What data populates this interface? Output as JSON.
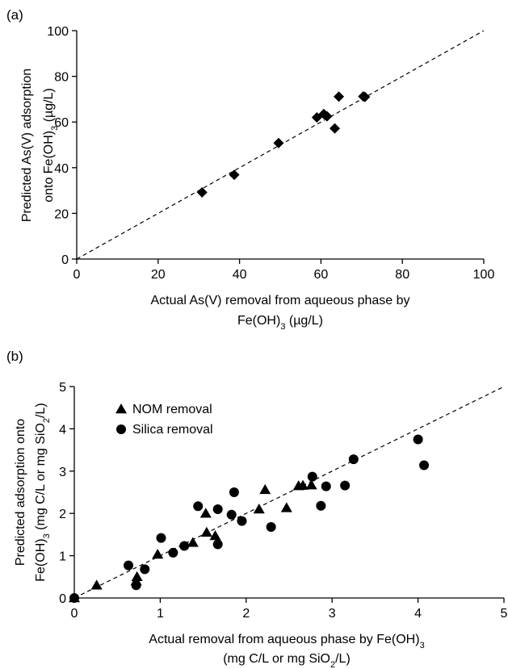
{
  "chart_data": [
    {
      "panel_label": "(a)",
      "type": "scatter",
      "xlabel_line1": "Actual As(V) removal from aqueous phase by",
      "xlabel_line2": {
        "pre": "Fe(OH)",
        "sub": "3",
        "post": " (µg/L)"
      },
      "ylabel_line1": "Predicted As(V) adsorption",
      "ylabel_line2": {
        "pre": "onto Fe(OH)",
        "sub": "3",
        "post": " (µg/L)"
      },
      "xlim": [
        0,
        100
      ],
      "ylim": [
        0,
        100
      ],
      "xticks": [
        0,
        20,
        40,
        60,
        80,
        100
      ],
      "yticks": [
        0,
        20,
        40,
        60,
        80,
        100
      ],
      "tick_labels_x": [
        "0",
        "20",
        "40",
        "60",
        "80",
        "100"
      ],
      "tick_labels_y": [
        "0",
        "20",
        "40",
        "60",
        "80",
        "100"
      ],
      "reference_line": "1:1 dashed",
      "series": [
        {
          "marker": "diamond",
          "points": [
            [
              30.8,
              29.2
            ],
            [
              38.7,
              36.9
            ],
            [
              49.6,
              50.8
            ],
            [
              59.0,
              62.0
            ],
            [
              60.7,
              63.5
            ],
            [
              61.5,
              62.5
            ],
            [
              63.4,
              57.2
            ],
            [
              64.4,
              71.1
            ],
            [
              70.4,
              71.2
            ],
            [
              70.8,
              71.0
            ]
          ]
        }
      ]
    },
    {
      "panel_label": "(b)",
      "type": "scatter",
      "xlabel_line1": {
        "pre": "Actual removal from aqueous phase by Fe(OH)",
        "sub": "3",
        "post": ""
      },
      "xlabel_line2": {
        "pre": "(mg C/L or mg SiO",
        "sub": "2",
        "post": "/L)"
      },
      "ylabel_line1": {
        "pre": "Predicted adsorption onto",
        "sub": "",
        "post": ""
      },
      "ylabel_line2": {
        "pre": "Fe(OH)",
        "sub": "3",
        "mid": " (mg C/L or mg SiO",
        "sub2": "2",
        "post": "/L)"
      },
      "xlim": [
        0,
        5
      ],
      "ylim": [
        0,
        5
      ],
      "xticks": [
        0,
        1,
        2,
        3,
        4,
        5
      ],
      "yticks": [
        0,
        1,
        2,
        3,
        4,
        5
      ],
      "tick_labels_x": [
        "0",
        "1",
        "2",
        "3",
        "4",
        "5"
      ],
      "tick_labels_y": [
        "0",
        "1",
        "2",
        "3",
        "4",
        "5"
      ],
      "reference_line": "1:1 dashed",
      "legend_position": "top-left",
      "series": [
        {
          "name": "NOM removal",
          "marker": "triangle",
          "points": [
            [
              0.0,
              0.0
            ],
            [
              0.26,
              0.3
            ],
            [
              0.72,
              0.4
            ],
            [
              0.73,
              0.5
            ],
            [
              0.97,
              1.03
            ],
            [
              1.38,
              1.31
            ],
            [
              1.53,
              2.0
            ],
            [
              1.54,
              1.55
            ],
            [
              1.64,
              1.47
            ],
            [
              2.15,
              2.1
            ],
            [
              2.22,
              2.56
            ],
            [
              2.47,
              2.13
            ],
            [
              2.61,
              2.65
            ],
            [
              2.66,
              2.66
            ],
            [
              2.76,
              2.67
            ]
          ]
        },
        {
          "name": "Silica removal",
          "marker": "circle",
          "points": [
            [
              0.0,
              0.0
            ],
            [
              0.63,
              0.77
            ],
            [
              0.72,
              0.3
            ],
            [
              0.82,
              0.68
            ],
            [
              1.01,
              1.42
            ],
            [
              1.15,
              1.07
            ],
            [
              1.28,
              1.23
            ],
            [
              1.44,
              2.17
            ],
            [
              1.67,
              2.1
            ],
            [
              1.67,
              1.27
            ],
            [
              1.83,
              1.97
            ],
            [
              1.86,
              2.5
            ],
            [
              1.95,
              1.82
            ],
            [
              2.29,
              1.68
            ],
            [
              2.77,
              2.87
            ],
            [
              2.87,
              2.18
            ],
            [
              2.93,
              2.64
            ],
            [
              3.15,
              2.66
            ],
            [
              3.25,
              3.28
            ],
            [
              4.0,
              3.75
            ],
            [
              4.07,
              3.14
            ]
          ]
        }
      ]
    }
  ]
}
